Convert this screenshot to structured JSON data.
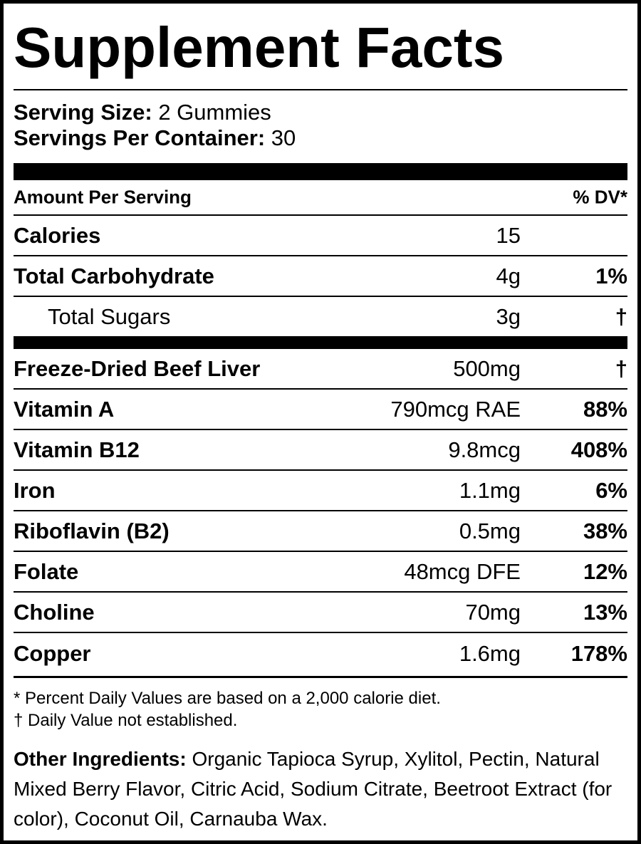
{
  "title": "Supplement Facts",
  "serving": {
    "size_label": "Serving Size:",
    "size_value": "2 Gummies",
    "per_container_label": "Servings Per Container:",
    "per_container_value": "30"
  },
  "table": {
    "header": {
      "amount_label": "Amount Per Serving",
      "dv_label": "% DV*"
    },
    "basic_rows": [
      {
        "name": "Calories",
        "amount": "15",
        "dv": ""
      },
      {
        "name": "Total Carbohydrate",
        "amount": "4g",
        "dv": "1%"
      },
      {
        "name": "Total Sugars",
        "amount": "3g",
        "dv": "†"
      }
    ],
    "nutrient_rows": [
      {
        "name": "Freeze-Dried Beef Liver",
        "amount": "500mg",
        "dv": "†"
      },
      {
        "name": "Vitamin A",
        "amount": "790mcg RAE",
        "dv": "88%"
      },
      {
        "name": "Vitamin B12",
        "amount": "9.8mcg",
        "dv": "408%"
      },
      {
        "name": "Iron",
        "amount": "1.1mg",
        "dv": "6%"
      },
      {
        "name": "Riboflavin (B2)",
        "amount": "0.5mg",
        "dv": "38%"
      },
      {
        "name": "Folate",
        "amount": "48mcg DFE",
        "dv": "12%"
      },
      {
        "name": "Choline",
        "amount": "70mg",
        "dv": "13%"
      },
      {
        "name": "Copper",
        "amount": "1.6mg",
        "dv": "178%"
      }
    ]
  },
  "footnotes": {
    "percent_note": "* Percent Daily Values are based on a 2,000 calorie diet.",
    "dagger_note": "† Daily Value not established."
  },
  "ingredients": {
    "label": "Other Ingredients:",
    "text": " Organic Tapioca Syrup, Xylitol, Pectin, Natural Mixed Berry Flavor, Citric Acid, Sodium Citrate, Beetroot Extract (for color), Coconut Oil, Carnauba Wax."
  }
}
